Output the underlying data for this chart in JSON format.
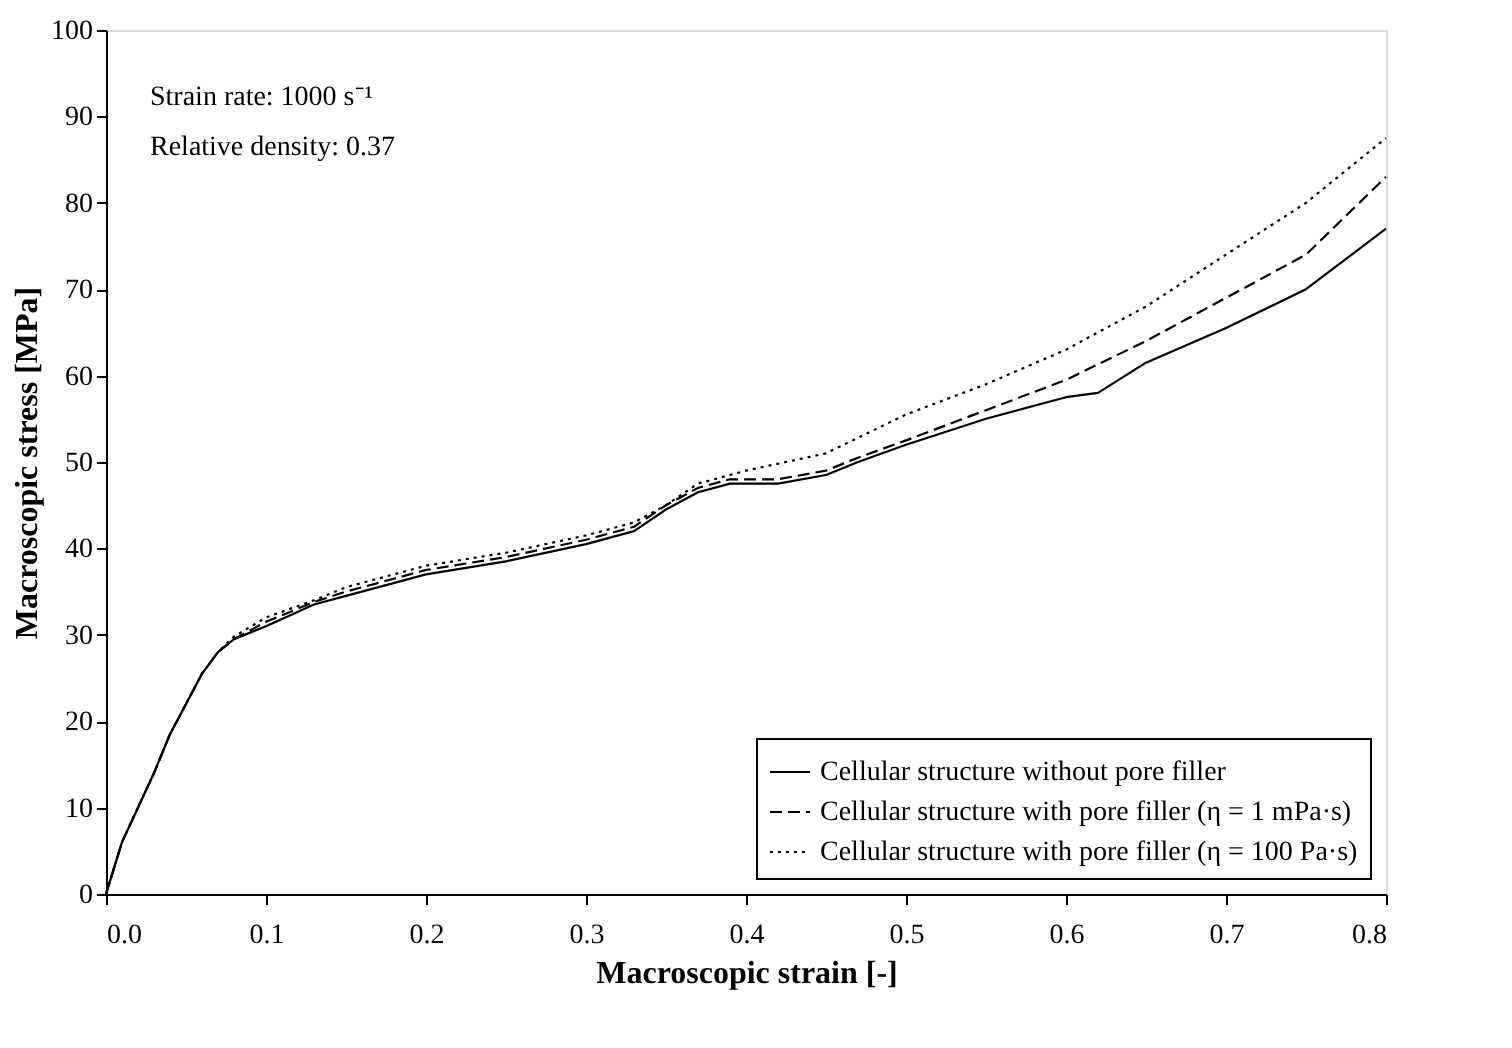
{
  "chart_data": {
    "type": "line",
    "xlabel": "Macroscopic strain  [-]",
    "ylabel": "Macroscopic stress [MPa]",
    "xlim": [
      0,
      0.8
    ],
    "ylim": [
      0,
      100
    ],
    "xticks": [
      {
        "value": 0,
        "label": "0.0"
      },
      0.1,
      0.2,
      0.3,
      0.4,
      0.5,
      0.6,
      0.7,
      0.8
    ],
    "yticks": [
      0,
      10,
      20,
      30,
      40,
      50,
      60,
      70,
      80,
      90,
      100
    ],
    "grid": false,
    "legend": "bottom right",
    "annotations": [
      "Strain rate:   1000 s⁻¹",
      "Relative density:   0.37"
    ],
    "series": [
      {
        "name": "Cellular structure without pore filler",
        "color": "#000000",
        "line_style": "solid",
        "x": [
          0,
          0.01,
          0.02,
          0.03,
          0.04,
          0.05,
          0.06,
          0.07,
          0.08,
          0.1,
          0.13,
          0.15,
          0.2,
          0.25,
          0.3,
          0.33,
          0.35,
          0.37,
          0.39,
          0.42,
          0.45,
          0.47,
          0.5,
          0.55,
          0.6,
          0.62,
          0.65,
          0.7,
          0.75,
          0.8
        ],
        "values": [
          0,
          6,
          10,
          14,
          18.5,
          22,
          25.5,
          28,
          29.5,
          31,
          33.5,
          34.5,
          37,
          38.5,
          40.5,
          42,
          44.5,
          46.5,
          47.5,
          47.5,
          48.5,
          50,
          52,
          55,
          57.5,
          58,
          61.5,
          65.5,
          70,
          77
        ]
      },
      {
        "name": "Cellular structure with pore filler (η = 1 mPa·s)",
        "color": "#000000",
        "line_style": "dashed",
        "x": [
          0,
          0.01,
          0.02,
          0.03,
          0.04,
          0.05,
          0.06,
          0.07,
          0.08,
          0.1,
          0.13,
          0.15,
          0.2,
          0.25,
          0.3,
          0.33,
          0.35,
          0.37,
          0.39,
          0.42,
          0.45,
          0.47,
          0.5,
          0.55,
          0.6,
          0.65,
          0.7,
          0.75,
          0.8
        ],
        "values": [
          0,
          6,
          10,
          14,
          18.5,
          22,
          25.5,
          28,
          29.5,
          31.5,
          33.8,
          35,
          37.5,
          39,
          41,
          42.5,
          45,
          47,
          48,
          48,
          49,
          50.5,
          52.5,
          56,
          59.5,
          64,
          69,
          74,
          83
        ]
      },
      {
        "name": "Cellular structure with pore filler (η = 100 Pa·s)",
        "color": "#000000",
        "line_style": "dotted",
        "x": [
          0,
          0.01,
          0.02,
          0.03,
          0.04,
          0.05,
          0.06,
          0.07,
          0.08,
          0.1,
          0.13,
          0.15,
          0.2,
          0.25,
          0.3,
          0.33,
          0.35,
          0.37,
          0.4,
          0.45,
          0.5,
          0.55,
          0.6,
          0.65,
          0.7,
          0.75,
          0.8
        ],
        "values": [
          0,
          6,
          10,
          14,
          18.5,
          22,
          25.5,
          28,
          29.8,
          32,
          34,
          35.5,
          38,
          39.5,
          41.5,
          43,
          45,
          47.5,
          49,
          51,
          55.5,
          59,
          63,
          68,
          74,
          80,
          87.5
        ]
      }
    ]
  }
}
